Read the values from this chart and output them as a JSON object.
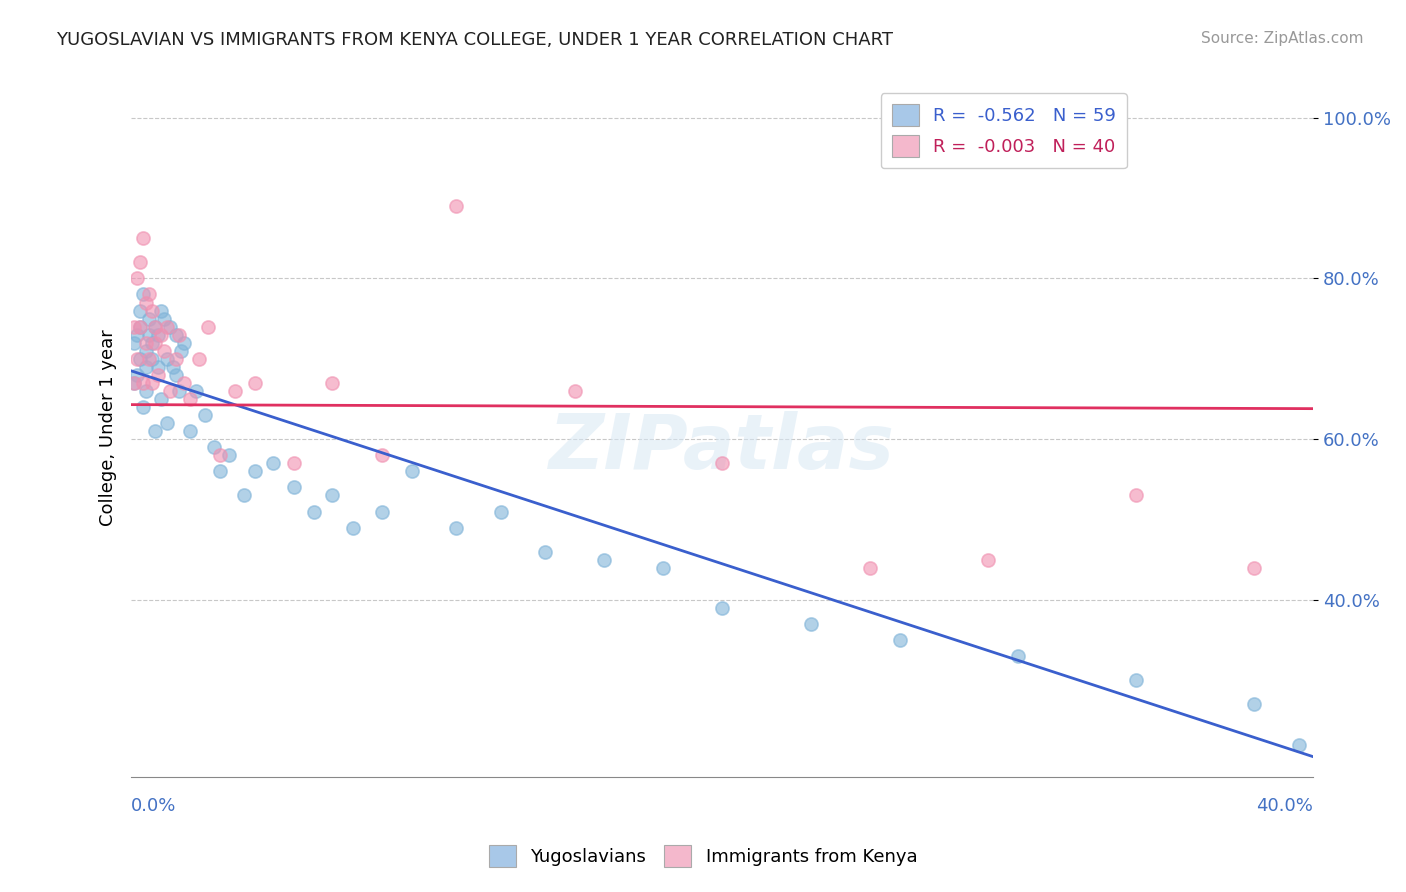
{
  "title": "YUGOSLAVIAN VS IMMIGRANTS FROM KENYA COLLEGE, UNDER 1 YEAR CORRELATION CHART",
  "source": "Source: ZipAtlas.com",
  "ylabel": "College, Under 1 year",
  "yticks": [
    0.4,
    0.6,
    0.8,
    1.0
  ],
  "ytick_labels": [
    "40.0%",
    "60.0%",
    "80.0%",
    "100.0%"
  ],
  "legend1_label": "R =  -0.562   N = 59",
  "legend2_label": "R =  -0.003   N = 40",
  "legend1_color": "#a8c8e8",
  "legend2_color": "#f4b8cc",
  "dot_color_yug": "#7fb3d8",
  "dot_color_ken": "#f090b0",
  "trend_color_yug": "#3a5fcd",
  "trend_color_ken": "#e03060",
  "watermark": "ZIPatlas",
  "xmin": 0.0,
  "xmax": 0.4,
  "ymin": 0.18,
  "ymax": 1.05,
  "yug_x": [
    0.001,
    0.001,
    0.002,
    0.002,
    0.003,
    0.003,
    0.003,
    0.004,
    0.004,
    0.005,
    0.005,
    0.005,
    0.006,
    0.006,
    0.007,
    0.007,
    0.008,
    0.008,
    0.009,
    0.009,
    0.01,
    0.01,
    0.011,
    0.012,
    0.012,
    0.013,
    0.014,
    0.015,
    0.015,
    0.016,
    0.017,
    0.018,
    0.02,
    0.022,
    0.025,
    0.028,
    0.03,
    0.033,
    0.038,
    0.042,
    0.048,
    0.055,
    0.062,
    0.068,
    0.075,
    0.085,
    0.095,
    0.11,
    0.125,
    0.14,
    0.16,
    0.18,
    0.2,
    0.23,
    0.26,
    0.3,
    0.34,
    0.38,
    0.395
  ],
  "yug_y": [
    0.67,
    0.72,
    0.73,
    0.68,
    0.76,
    0.7,
    0.74,
    0.78,
    0.64,
    0.71,
    0.69,
    0.66,
    0.73,
    0.75,
    0.7,
    0.72,
    0.74,
    0.61,
    0.69,
    0.73,
    0.76,
    0.65,
    0.75,
    0.7,
    0.62,
    0.74,
    0.69,
    0.68,
    0.73,
    0.66,
    0.71,
    0.72,
    0.61,
    0.66,
    0.63,
    0.59,
    0.56,
    0.58,
    0.53,
    0.56,
    0.57,
    0.54,
    0.51,
    0.53,
    0.49,
    0.51,
    0.56,
    0.49,
    0.51,
    0.46,
    0.45,
    0.44,
    0.39,
    0.37,
    0.35,
    0.33,
    0.3,
    0.27,
    0.22
  ],
  "ken_x": [
    0.001,
    0.001,
    0.002,
    0.002,
    0.003,
    0.003,
    0.004,
    0.004,
    0.005,
    0.005,
    0.006,
    0.006,
    0.007,
    0.007,
    0.008,
    0.008,
    0.009,
    0.01,
    0.011,
    0.012,
    0.013,
    0.015,
    0.016,
    0.018,
    0.02,
    0.023,
    0.026,
    0.03,
    0.035,
    0.042,
    0.055,
    0.068,
    0.085,
    0.11,
    0.15,
    0.2,
    0.25,
    0.29,
    0.34,
    0.38
  ],
  "ken_y": [
    0.67,
    0.74,
    0.8,
    0.7,
    0.82,
    0.74,
    0.85,
    0.67,
    0.77,
    0.72,
    0.7,
    0.78,
    0.76,
    0.67,
    0.72,
    0.74,
    0.68,
    0.73,
    0.71,
    0.74,
    0.66,
    0.7,
    0.73,
    0.67,
    0.65,
    0.7,
    0.74,
    0.58,
    0.66,
    0.67,
    0.57,
    0.67,
    0.58,
    0.89,
    0.66,
    0.57,
    0.44,
    0.45,
    0.53,
    0.44
  ],
  "yug_trend_x": [
    0.0,
    0.4
  ],
  "yug_trend_y": [
    0.685,
    0.205
  ],
  "ken_trend_x": [
    0.0,
    0.4
  ],
  "ken_trend_y": [
    0.643,
    0.638
  ]
}
